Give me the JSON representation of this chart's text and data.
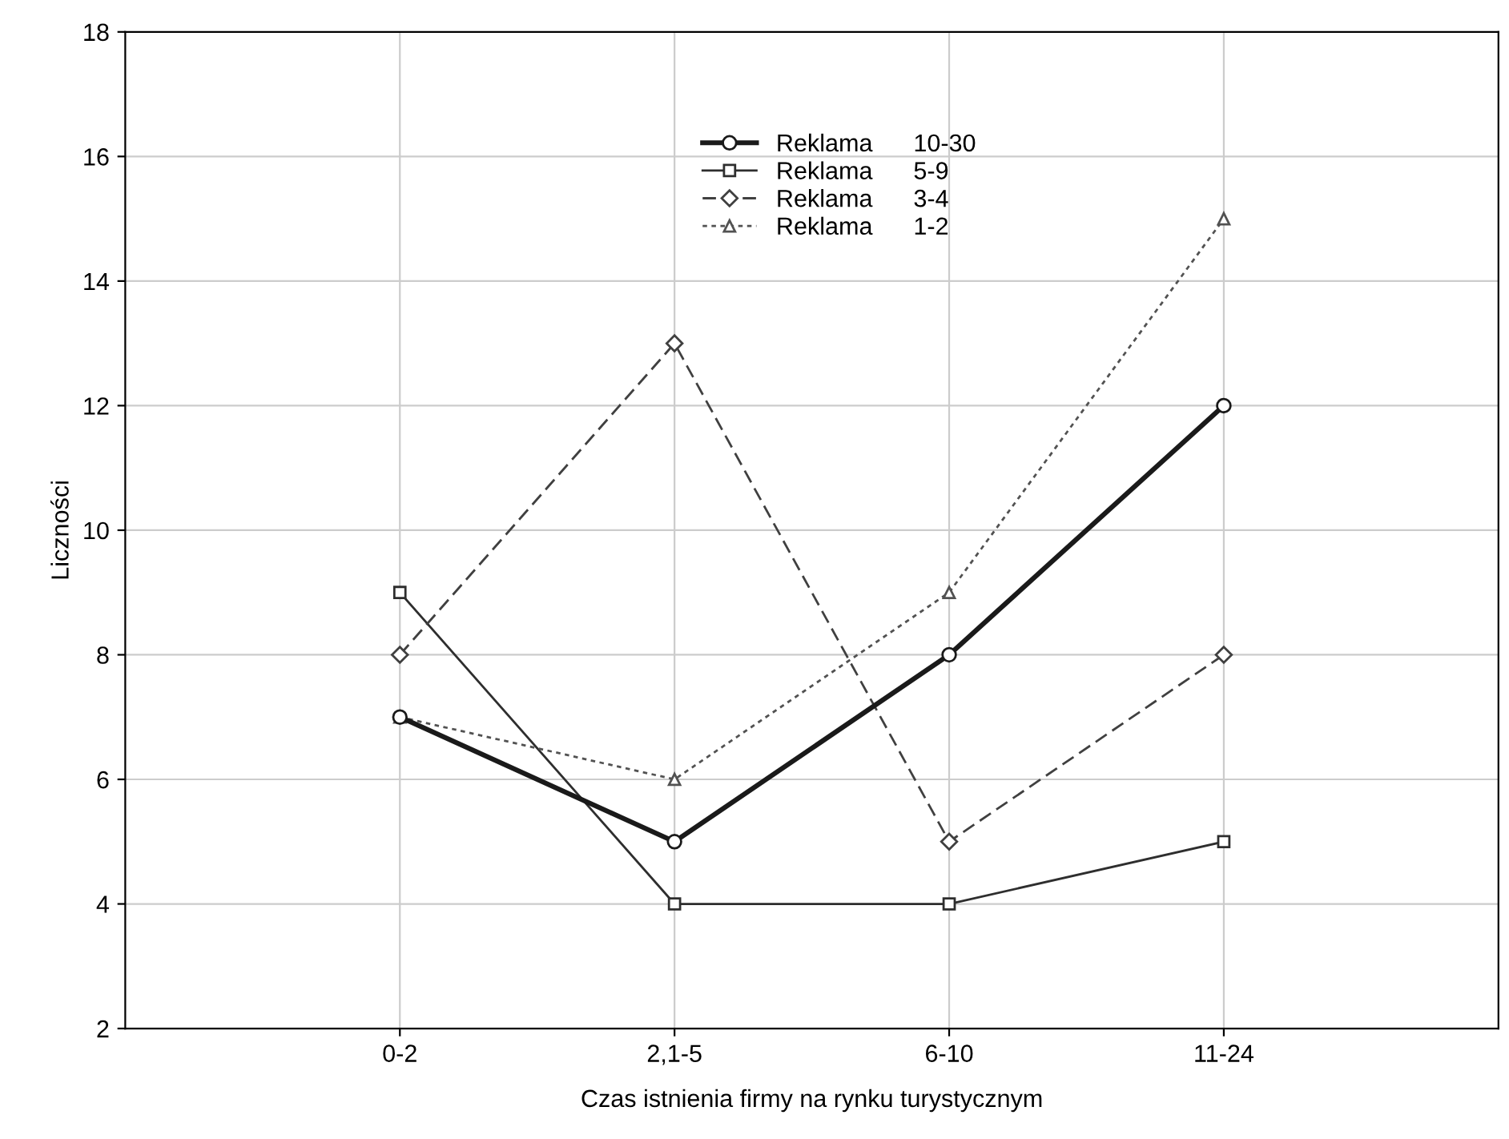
{
  "chart_data": {
    "type": "line",
    "xlabel": "Czas istnienia firmy na rynku turystycznym",
    "ylabel": "Liczności",
    "categories": [
      "0-2",
      "2,1-5",
      "6-10",
      "11-24"
    ],
    "series": [
      {
        "name": "Reklama      10-30",
        "color": "#1a1a1a",
        "values": [
          7,
          5,
          8,
          12
        ],
        "marker": "circle",
        "line_style": "solid"
      },
      {
        "name": "Reklama      5-9",
        "color": "#2e2e2e",
        "values": [
          9,
          4,
          4,
          5
        ],
        "marker": "square",
        "line_style": "solid"
      },
      {
        "name": "Reklama      3-4",
        "color": "#404040",
        "values": [
          8,
          13,
          5,
          8
        ],
        "marker": "diamond",
        "line_style": "dashed"
      },
      {
        "name": "Reklama      1-2",
        "color": "#525252",
        "values": [
          7,
          6,
          9,
          15
        ],
        "marker": "triangle",
        "line_style": "dotted"
      }
    ],
    "ylim": [
      2,
      18
    ],
    "yticks": [
      2,
      4,
      6,
      8,
      10,
      12,
      14,
      16,
      18
    ],
    "grid": true,
    "legend": "top"
  }
}
